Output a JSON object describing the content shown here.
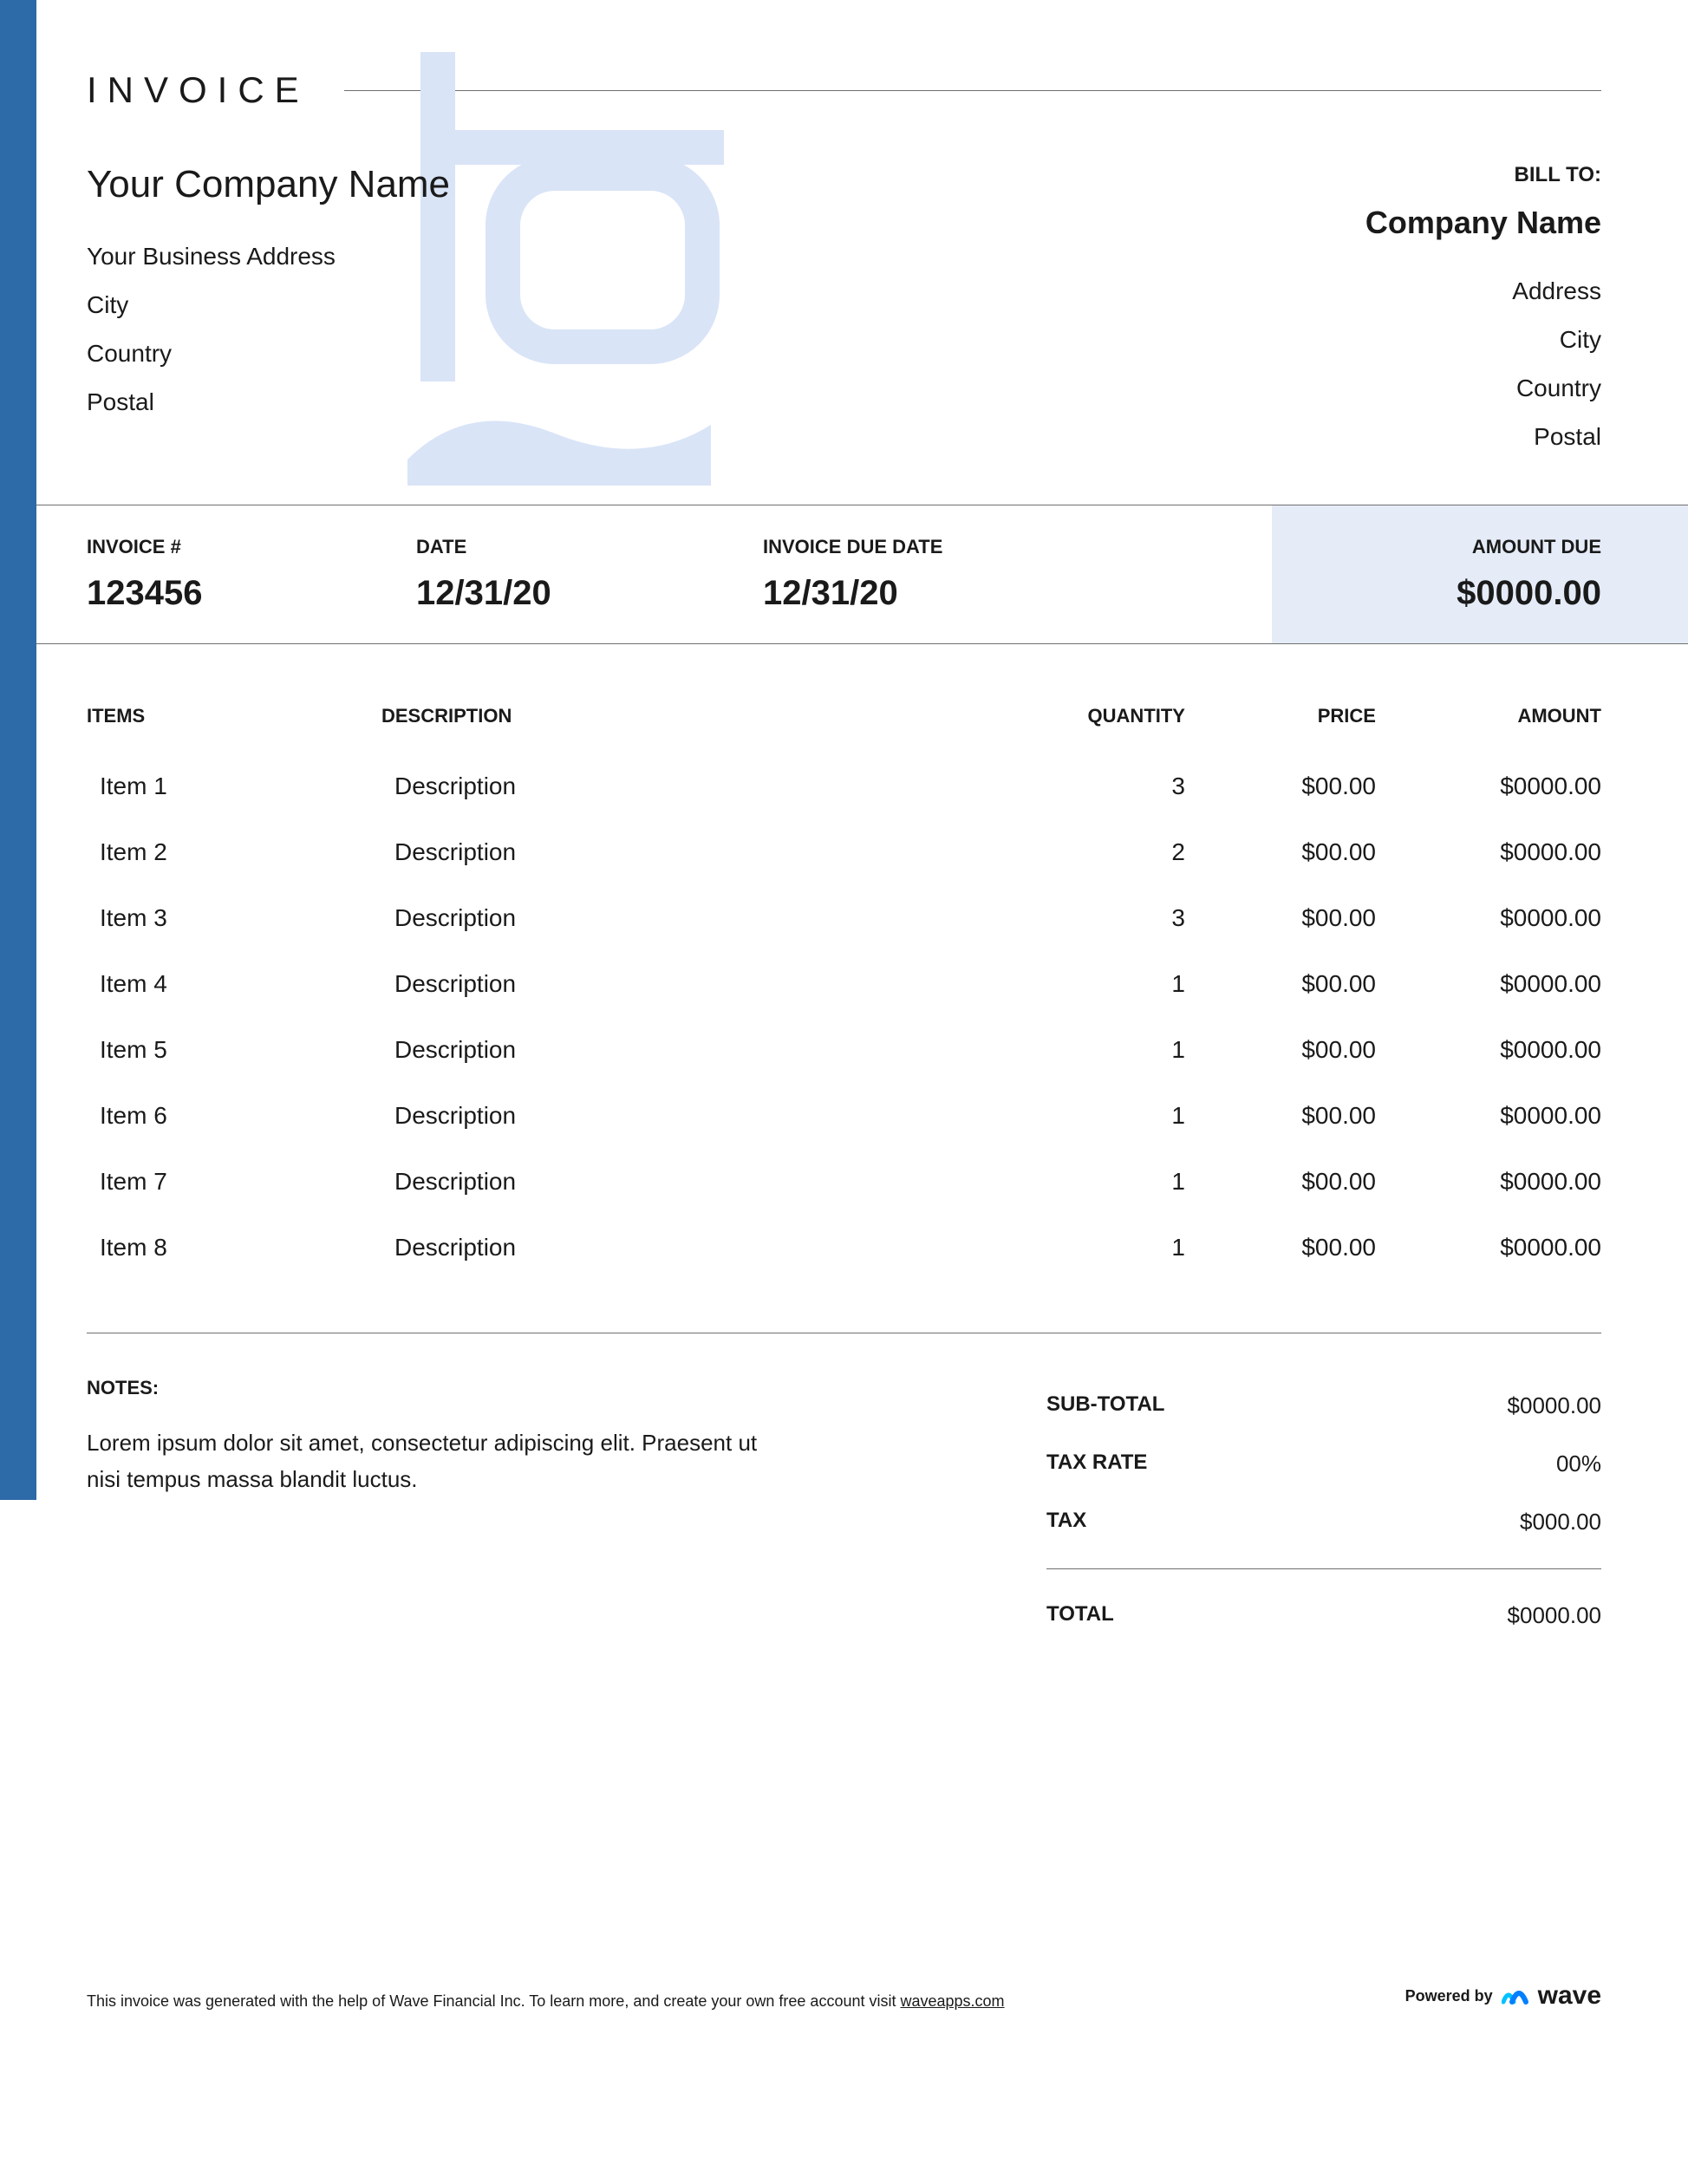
{
  "title": "INVOICE",
  "colors": {
    "sidebar": "#2d6aa8",
    "amount_bg": "#e5ecf8",
    "watermark": "#d9e4f7",
    "text": "#1a1a1a",
    "border": "#707070",
    "logo_blue": "#0080ff",
    "logo_cyan": "#00c2ff"
  },
  "from": {
    "company": "Your Company Name",
    "address": "Your Business Address",
    "city": "City",
    "country": "Country",
    "postal": "Postal"
  },
  "to": {
    "label": "BILL TO:",
    "company": "Company Name",
    "address": "Address",
    "city": "City",
    "country": "Country",
    "postal": "Postal"
  },
  "meta": {
    "invoice_num_label": "INVOICE #",
    "invoice_num": "123456",
    "date_label": "DATE",
    "date": "12/31/20",
    "due_label": "INVOICE DUE DATE",
    "due": "12/31/20",
    "amount_due_label": "AMOUNT DUE",
    "amount_due": "$0000.00"
  },
  "items_header": {
    "items": "ITEMS",
    "description": "DESCRIPTION",
    "quantity": "QUANTITY",
    "price": "PRICE",
    "amount": "AMOUNT"
  },
  "items": [
    {
      "name": "Item 1",
      "description": "Description",
      "qty": "3",
      "price": "$00.00",
      "amount": "$0000.00"
    },
    {
      "name": "Item 2",
      "description": "Description",
      "qty": "2",
      "price": "$00.00",
      "amount": "$0000.00"
    },
    {
      "name": "Item 3",
      "description": "Description",
      "qty": "3",
      "price": "$00.00",
      "amount": "$0000.00"
    },
    {
      "name": "Item 4",
      "description": "Description",
      "qty": "1",
      "price": "$00.00",
      "amount": "$0000.00"
    },
    {
      "name": "Item 5",
      "description": "Description",
      "qty": "1",
      "price": "$00.00",
      "amount": "$0000.00"
    },
    {
      "name": "Item 6",
      "description": "Description",
      "qty": "1",
      "price": "$00.00",
      "amount": "$0000.00"
    },
    {
      "name": "Item 7",
      "description": "Description",
      "qty": "1",
      "price": "$00.00",
      "amount": "$0000.00"
    },
    {
      "name": "Item 8",
      "description": "Description",
      "qty": "1",
      "price": "$00.00",
      "amount": "$0000.00"
    }
  ],
  "notes": {
    "label": "NOTES:",
    "text": "Lorem ipsum dolor sit amet, consectetur adipiscing elit. Praesent ut nisi tempus massa blandit luctus."
  },
  "totals": {
    "subtotal_label": "SUB-TOTAL",
    "subtotal": "$0000.00",
    "taxrate_label": "TAX RATE",
    "taxrate": "00%",
    "tax_label": "TAX",
    "tax": "$000.00",
    "total_label": "TOTAL",
    "total": "$0000.00"
  },
  "footer": {
    "text_prefix": "This invoice was generated with the help of Wave Financial Inc. To learn more, and create your own free account visit ",
    "link": "waveapps.com",
    "powered_by": "Powered by",
    "brand": "wave"
  }
}
